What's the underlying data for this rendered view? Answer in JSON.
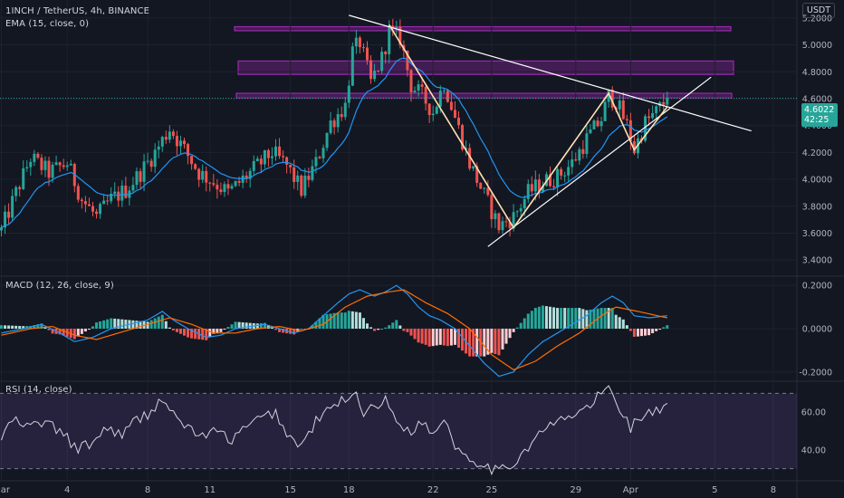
{
  "header": {
    "symbol_line": "1INCH / TetherUS, 4h, BINANCE",
    "indicator_line": "EMA (15, close, 0)",
    "currency": "USDT"
  },
  "macd_legend": "MACD (12, 26, close, 9)",
  "rsi_legend": "RSI (14, close)",
  "last_price": {
    "value": "4.6022",
    "countdown": "42:25"
  },
  "colors": {
    "background": "#131722",
    "up": "#26a69a",
    "down": "#ef5350",
    "ema": "#2196f3",
    "macd": "#2196f3",
    "signal": "#ff6d00",
    "rsi": "#d1d4dc",
    "zone": "#9c27b0",
    "trendline": "#ffffff"
  },
  "chart_data": [
    {
      "type": "candlestick",
      "panel": "price",
      "x_tick_labels": [
        "Mar",
        "4",
        "8",
        "11",
        "15",
        "18",
        "22",
        "25",
        "29",
        "Apr",
        "5",
        "8"
      ],
      "ylim": [
        3.3,
        5.3
      ],
      "y_ticks": [
        "5.2000",
        "5.0000",
        "4.8000",
        "4.6000",
        "4.4000",
        "4.2000",
        "4.0000",
        "3.8000",
        "3.6000",
        "3.4000"
      ],
      "close_path": [
        [
          0,
          3.62
        ],
        [
          4,
          3.9
        ],
        [
          8,
          4.16
        ],
        [
          13,
          4.05
        ],
        [
          18,
          4.12
        ],
        [
          22,
          3.85
        ],
        [
          26,
          3.72
        ],
        [
          30,
          3.85
        ],
        [
          34,
          3.92
        ],
        [
          38,
          4.05
        ],
        [
          42,
          4.2
        ],
        [
          46,
          4.38
        ],
        [
          50,
          4.22
        ],
        [
          54,
          4.05
        ],
        [
          58,
          3.98
        ],
        [
          62,
          3.9
        ],
        [
          66,
          4.0
        ],
        [
          70,
          4.1
        ],
        [
          74,
          4.2
        ],
        [
          78,
          4.1
        ],
        [
          82,
          3.92
        ],
        [
          86,
          4.12
        ],
        [
          90,
          4.42
        ],
        [
          94,
          4.55
        ],
        [
          96,
          4.95
        ],
        [
          98,
          5.02
        ],
        [
          101,
          4.72
        ],
        [
          104,
          4.9
        ],
        [
          106,
          5.1
        ],
        [
          109,
          5.05
        ],
        [
          112,
          4.7
        ],
        [
          115,
          4.62
        ],
        [
          118,
          4.5
        ],
        [
          121,
          4.72
        ],
        [
          124,
          4.46
        ],
        [
          128,
          4.12
        ],
        [
          132,
          3.88
        ],
        [
          136,
          3.65
        ],
        [
          140,
          3.72
        ],
        [
          144,
          3.9
        ],
        [
          148,
          3.98
        ],
        [
          152,
          4.02
        ],
        [
          156,
          4.12
        ],
        [
          160,
          4.3
        ],
        [
          164,
          4.45
        ],
        [
          166,
          4.62
        ],
        [
          168,
          4.58
        ],
        [
          171,
          4.4
        ],
        [
          173,
          4.22
        ],
        [
          176,
          4.42
        ],
        [
          179,
          4.5
        ],
        [
          182,
          4.6
        ]
      ],
      "ema_period": 15,
      "resistance_zones": [
        [
          5.105,
          5.135
        ],
        [
          4.78,
          4.88
        ],
        [
          4.605,
          4.64
        ]
      ],
      "trendlines": [
        {
          "from": [
            95,
            5.22
          ],
          "to": [
            205,
            4.36
          ]
        },
        {
          "from": [
            133,
            3.5
          ],
          "to": [
            194,
            4.76
          ]
        }
      ],
      "zigzag": [
        [
          106,
          5.15
        ],
        [
          140,
          3.64
        ],
        [
          166,
          4.64
        ],
        [
          173,
          4.22
        ],
        [
          182,
          4.54
        ]
      ],
      "last_price": 4.6022
    },
    {
      "type": "histogram+line",
      "panel": "macd",
      "ylim": [
        -0.23,
        0.23
      ],
      "y_ticks": [
        "0.2000",
        "0.0000",
        "-0.2000"
      ],
      "macd_path": [
        [
          0,
          -0.02
        ],
        [
          6,
          0.0
        ],
        [
          11,
          0.02
        ],
        [
          16,
          -0.02
        ],
        [
          20,
          -0.06
        ],
        [
          25,
          -0.04
        ],
        [
          30,
          0.0
        ],
        [
          35,
          0.02
        ],
        [
          40,
          0.04
        ],
        [
          44,
          0.08
        ],
        [
          47,
          0.04
        ],
        [
          51,
          0.0
        ],
        [
          56,
          -0.04
        ],
        [
          60,
          -0.03
        ],
        [
          64,
          0.0
        ],
        [
          68,
          0.01
        ],
        [
          72,
          0.02
        ],
        [
          76,
          0.0
        ],
        [
          80,
          -0.02
        ],
        [
          84,
          0.0
        ],
        [
          88,
          0.06
        ],
        [
          92,
          0.12
        ],
        [
          95,
          0.16
        ],
        [
          98,
          0.18
        ],
        [
          102,
          0.15
        ],
        [
          105,
          0.17
        ],
        [
          108,
          0.2
        ],
        [
          111,
          0.16
        ],
        [
          114,
          0.1
        ],
        [
          117,
          0.06
        ],
        [
          120,
          0.04
        ],
        [
          124,
          0.0
        ],
        [
          128,
          -0.08
        ],
        [
          132,
          -0.16
        ],
        [
          136,
          -0.22
        ],
        [
          140,
          -0.2
        ],
        [
          144,
          -0.12
        ],
        [
          148,
          -0.06
        ],
        [
          152,
          -0.02
        ],
        [
          156,
          0.02
        ],
        [
          160,
          0.06
        ],
        [
          164,
          0.12
        ],
        [
          167,
          0.15
        ],
        [
          170,
          0.12
        ],
        [
          173,
          0.06
        ],
        [
          177,
          0.05
        ],
        [
          182,
          0.06
        ]
      ],
      "signal_path": [
        [
          0,
          -0.03
        ],
        [
          8,
          0.0
        ],
        [
          14,
          0.01
        ],
        [
          20,
          -0.03
        ],
        [
          26,
          -0.05
        ],
        [
          32,
          -0.02
        ],
        [
          40,
          0.02
        ],
        [
          46,
          0.05
        ],
        [
          52,
          0.02
        ],
        [
          58,
          -0.02
        ],
        [
          64,
          -0.02
        ],
        [
          70,
          0.0
        ],
        [
          76,
          0.01
        ],
        [
          82,
          -0.01
        ],
        [
          88,
          0.02
        ],
        [
          94,
          0.1
        ],
        [
          100,
          0.15
        ],
        [
          106,
          0.17
        ],
        [
          110,
          0.18
        ],
        [
          116,
          0.12
        ],
        [
          122,
          0.07
        ],
        [
          128,
          0.0
        ],
        [
          134,
          -0.12
        ],
        [
          140,
          -0.19
        ],
        [
          146,
          -0.15
        ],
        [
          152,
          -0.08
        ],
        [
          158,
          -0.02
        ],
        [
          164,
          0.06
        ],
        [
          168,
          0.1
        ],
        [
          174,
          0.08
        ],
        [
          182,
          0.05
        ]
      ]
    },
    {
      "type": "line",
      "panel": "rsi",
      "ylim": [
        25,
        75
      ],
      "y_ticks": [
        "60.00",
        "40.00"
      ],
      "band": [
        30,
        70
      ],
      "rsi_path": [
        [
          0,
          46
        ],
        [
          3,
          56
        ],
        [
          7,
          52
        ],
        [
          12,
          55
        ],
        [
          17,
          48
        ],
        [
          21,
          40
        ],
        [
          25,
          44
        ],
        [
          29,
          52
        ],
        [
          33,
          48
        ],
        [
          37,
          56
        ],
        [
          41,
          60
        ],
        [
          44,
          68
        ],
        [
          47,
          58
        ],
        [
          51,
          52
        ],
        [
          55,
          47
        ],
        [
          59,
          50
        ],
        [
          63,
          45
        ],
        [
          67,
          52
        ],
        [
          71,
          57
        ],
        [
          75,
          60
        ],
        [
          78,
          48
        ],
        [
          82,
          42
        ],
        [
          86,
          55
        ],
        [
          90,
          62
        ],
        [
          94,
          67
        ],
        [
          96,
          72
        ],
        [
          99,
          60
        ],
        [
          102,
          64
        ],
        [
          105,
          66
        ],
        [
          108,
          55
        ],
        [
          112,
          50
        ],
        [
          115,
          55
        ],
        [
          118,
          48
        ],
        [
          121,
          58
        ],
        [
          124,
          42
        ],
        [
          128,
          36
        ],
        [
          132,
          32
        ],
        [
          136,
          28
        ],
        [
          140,
          33
        ],
        [
          144,
          42
        ],
        [
          148,
          50
        ],
        [
          152,
          55
        ],
        [
          156,
          58
        ],
        [
          160,
          62
        ],
        [
          164,
          70
        ],
        [
          166,
          73
        ],
        [
          169,
          62
        ],
        [
          172,
          52
        ],
        [
          175,
          58
        ],
        [
          178,
          60
        ],
        [
          182,
          62
        ]
      ]
    }
  ]
}
